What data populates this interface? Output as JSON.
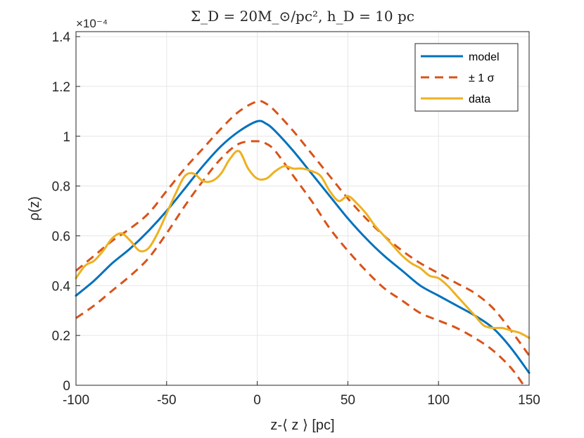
{
  "chart_data": {
    "type": "line",
    "title": "Σ_D = 20M_⊙/pc², h_D = 10 pc",
    "xlabel": "z-⟨ z ⟩   [pc]",
    "ylabel": "ρ(z)",
    "y_exponent_label": "×10⁻⁴",
    "xlim": [
      -100,
      150
    ],
    "ylim": [
      0,
      1.42
    ],
    "x_ticks": [
      -100,
      -50,
      0,
      50,
      100,
      150
    ],
    "y_ticks": [
      0,
      0.2,
      0.4,
      0.6,
      0.8,
      1,
      1.2,
      1.4
    ],
    "x_tick_labels": [
      "-100",
      "-50",
      "0",
      "50",
      "100",
      "150"
    ],
    "y_tick_labels": [
      "0",
      "0.2",
      "0.4",
      "0.6",
      "0.8",
      "1",
      "1.2",
      "1.4"
    ],
    "grid": true,
    "legend_position": "top-right",
    "series": [
      {
        "name": "model",
        "color": "#0072BD",
        "style": "solid",
        "x": [
          -100,
          -90,
          -80,
          -70,
          -60,
          -50,
          -40,
          -30,
          -20,
          -10,
          0,
          5,
          10,
          20,
          30,
          40,
          50,
          60,
          70,
          80,
          90,
          100,
          110,
          120,
          130,
          140,
          150
        ],
        "y": [
          0.36,
          0.42,
          0.49,
          0.55,
          0.62,
          0.7,
          0.79,
          0.88,
          0.96,
          1.02,
          1.06,
          1.05,
          1.02,
          0.94,
          0.85,
          0.76,
          0.67,
          0.59,
          0.52,
          0.46,
          0.4,
          0.36,
          0.32,
          0.28,
          0.23,
          0.15,
          0.05
        ]
      },
      {
        "name": "± 1 σ",
        "color": "#D95319",
        "style": "dashed",
        "x": [
          -100,
          -90,
          -80,
          -70,
          -60,
          -50,
          -40,
          -30,
          -20,
          -10,
          0,
          5,
          10,
          20,
          30,
          40,
          50,
          60,
          70,
          80,
          90,
          100,
          110,
          120,
          130,
          140,
          150
        ],
        "y": [
          0.46,
          0.52,
          0.58,
          0.63,
          0.69,
          0.78,
          0.87,
          0.95,
          1.03,
          1.1,
          1.14,
          1.13,
          1.1,
          1.02,
          0.93,
          0.84,
          0.75,
          0.67,
          0.6,
          0.54,
          0.49,
          0.45,
          0.41,
          0.37,
          0.31,
          0.22,
          0.12
        ]
      },
      {
        "name": "",
        "color": "#D95319",
        "style": "dashed",
        "x": [
          -100,
          -90,
          -80,
          -70,
          -60,
          -50,
          -40,
          -30,
          -20,
          -10,
          0,
          5,
          10,
          20,
          30,
          40,
          50,
          60,
          70,
          80,
          90,
          100,
          110,
          120,
          130,
          140,
          147
        ],
        "y": [
          0.27,
          0.32,
          0.38,
          0.44,
          0.51,
          0.61,
          0.72,
          0.82,
          0.91,
          0.97,
          0.98,
          0.97,
          0.94,
          0.84,
          0.74,
          0.63,
          0.54,
          0.46,
          0.39,
          0.34,
          0.29,
          0.26,
          0.23,
          0.19,
          0.14,
          0.07,
          0.0
        ]
      },
      {
        "name": "data",
        "color": "#EDB120",
        "style": "solid",
        "x": [
          -100,
          -95,
          -90,
          -85,
          -80,
          -75,
          -70,
          -65,
          -60,
          -55,
          -50,
          -45,
          -40,
          -35,
          -30,
          -25,
          -20,
          -15,
          -10,
          -5,
          0,
          5,
          10,
          15,
          20,
          25,
          30,
          35,
          40,
          45,
          50,
          55,
          60,
          65,
          70,
          75,
          80,
          85,
          90,
          95,
          100,
          105,
          110,
          115,
          120,
          125,
          130,
          135,
          140,
          145,
          150
        ],
        "y": [
          0.43,
          0.48,
          0.5,
          0.54,
          0.59,
          0.61,
          0.58,
          0.54,
          0.55,
          0.61,
          0.69,
          0.77,
          0.84,
          0.85,
          0.82,
          0.82,
          0.85,
          0.91,
          0.94,
          0.87,
          0.83,
          0.83,
          0.86,
          0.88,
          0.87,
          0.87,
          0.86,
          0.84,
          0.78,
          0.74,
          0.76,
          0.73,
          0.69,
          0.64,
          0.6,
          0.56,
          0.52,
          0.49,
          0.47,
          0.44,
          0.43,
          0.4,
          0.36,
          0.32,
          0.28,
          0.24,
          0.23,
          0.23,
          0.22,
          0.21,
          0.19
        ]
      }
    ]
  }
}
